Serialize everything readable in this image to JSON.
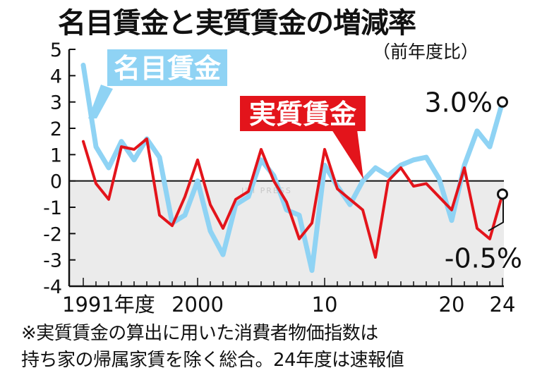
{
  "title": "名目賃金と実質賃金の増減率",
  "unit": "（前年度比）",
  "footnote_line1": "※実質賃金の算出に用いた消費者物価指数は",
  "footnote_line2": "持ち家の帰属家賃を除く総合。24年度は速報値",
  "chart_data": {
    "type": "line",
    "x": [
      1991,
      1992,
      1993,
      1994,
      1995,
      1996,
      1997,
      1998,
      1999,
      2000,
      2001,
      2002,
      2003,
      2004,
      2005,
      2006,
      2007,
      2008,
      2009,
      2010,
      2011,
      2012,
      2013,
      2014,
      2015,
      2016,
      2017,
      2018,
      2019,
      2020,
      2021,
      2022,
      2023,
      2024
    ],
    "x_tick_labels": [
      {
        "x": 1991,
        "label": "1991年度"
      },
      {
        "x": 2000,
        "label": "2000"
      },
      {
        "x": 2010,
        "label": "10"
      },
      {
        "x": 2020,
        "label": "20"
      },
      {
        "x": 2024,
        "label": "24"
      }
    ],
    "ylim": [
      -4,
      5
    ],
    "y_ticks": [
      5,
      4,
      3,
      2,
      1,
      0,
      -1,
      -2,
      -3,
      -4
    ],
    "y_tick_labels": [
      "5",
      "4",
      "3",
      "2",
      "1",
      "0",
      "-1",
      "-2",
      "-3",
      "-4"
    ],
    "series": [
      {
        "name": "名目賃金",
        "color": "#8fd3f4",
        "values": [
          4.4,
          1.3,
          0.5,
          1.5,
          0.8,
          1.6,
          0.9,
          -1.6,
          -1.3,
          0.0,
          -1.9,
          -2.8,
          -0.9,
          -0.6,
          0.8,
          0.2,
          -1.1,
          -1.3,
          -3.4,
          0.6,
          -0.2,
          -0.9,
          0.0,
          0.5,
          0.2,
          0.6,
          0.8,
          0.9,
          0.1,
          -1.5,
          0.6,
          1.9,
          1.3,
          3.0
        ]
      },
      {
        "name": "実質賃金",
        "color": "#e3141b",
        "values": [
          1.5,
          -0.1,
          -0.7,
          1.3,
          1.2,
          1.6,
          -1.3,
          -1.7,
          -0.6,
          0.8,
          -0.9,
          -1.8,
          -0.7,
          -0.4,
          1.2,
          0.0,
          -0.8,
          -2.2,
          -1.6,
          1.2,
          -0.3,
          -0.7,
          -1.1,
          -2.9,
          0.0,
          0.5,
          -0.2,
          -0.1,
          -0.6,
          -1.1,
          0.5,
          -1.8,
          -2.2,
          -0.5
        ]
      }
    ],
    "end_labels": {
      "名目賃金": "3.0%",
      "実質賃金": "-0.5%"
    },
    "negative_region_shaded": true,
    "negative_region_color": "#ebebeb",
    "watermark": "JIJI PRESS"
  }
}
